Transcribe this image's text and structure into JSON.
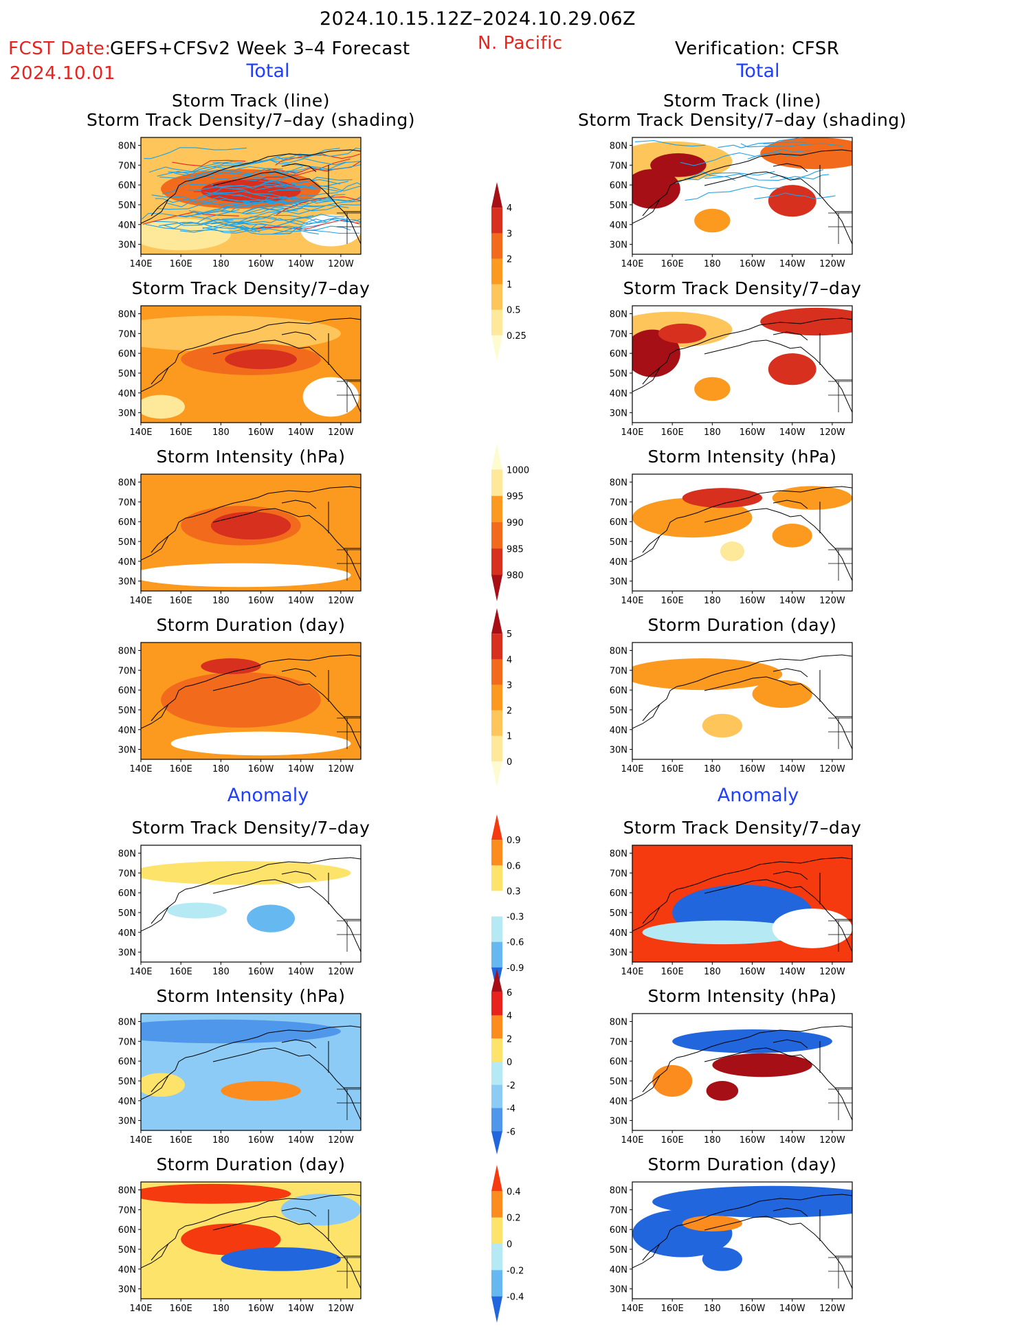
{
  "header": {
    "period": "2024.10.15.12Z–2024.10.29.06Z",
    "region": "N. Pacific",
    "fcst_label": "FCST Date:",
    "model": "GEFS+CFSv2 Week 3–4 Forecast",
    "fcst_date": "2024.10.01",
    "verification": "Verification: CFSR",
    "left_section": "Total",
    "right_section": "Total",
    "left_anomaly": "Anomaly",
    "right_anomaly": "Anomaly"
  },
  "axes": {
    "x_ticks": [
      "140E",
      "160E",
      "180",
      "160W",
      "140W",
      "120W"
    ],
    "y_ticks": [
      "80N",
      "70N",
      "60N",
      "50N",
      "40N",
      "30N"
    ]
  },
  "colorbars": [
    {
      "name": "track-density-total",
      "labels": [
        "4",
        "3",
        "2",
        "1",
        "0.5",
        "0.25"
      ],
      "colors": [
        "#a50f15",
        "#d7301f",
        "#f26b1d",
        "#fc9a1f",
        "#fdc55a",
        "#fee89a",
        "#fffbd0"
      ]
    },
    {
      "name": "intensity-total",
      "labels": [
        "1000",
        "995",
        "990",
        "985",
        "980"
      ],
      "colors": [
        "#fffbd0",
        "#fee89a",
        "#fc9a1f",
        "#f26b1d",
        "#d7301f",
        "#a50f15"
      ]
    },
    {
      "name": "duration-total",
      "labels": [
        "5",
        "4",
        "3",
        "2",
        "1",
        "0"
      ],
      "colors": [
        "#a50f15",
        "#d7301f",
        "#f26b1d",
        "#fc9a1f",
        "#fdc55a",
        "#fee89a",
        "#fffbd0"
      ]
    },
    {
      "name": "track-density-anomaly",
      "labels": [
        "0.9",
        "0.6",
        "0.3",
        "-0.3",
        "-0.6",
        "-0.9"
      ],
      "colors": [
        "#f53a10",
        "#fc8c1e",
        "#fee36a",
        "#ffffff",
        "#b5eaf5",
        "#66b8f0",
        "#2266dd"
      ]
    },
    {
      "name": "intensity-anomaly",
      "labels": [
        "6",
        "4",
        "2",
        "0",
        "-2",
        "-4",
        "-6"
      ],
      "colors": [
        "#a50f15",
        "#e8231e",
        "#fc8c1e",
        "#fee36a",
        "#b5eaf5",
        "#8ccbf5",
        "#4f97ea",
        "#2266dd"
      ]
    },
    {
      "name": "duration-anomaly",
      "labels": [
        "0.4",
        "0.2",
        "0",
        "-0.2",
        "-0.4"
      ],
      "colors": [
        "#f53a10",
        "#fc8c1e",
        "#fee36a",
        "#b5eaf5",
        "#66b8f0",
        "#2266dd"
      ]
    }
  ],
  "panels": [
    {
      "title1": "Storm Track (line)",
      "title2": "Storm Track Density/7–day (shading)",
      "base": "#fdc55a",
      "tracks": true,
      "blobs": [
        {
          "lon": 190,
          "lat": 58,
          "rx": 40,
          "ry": 10,
          "color": "#f26b1d"
        },
        {
          "lon": 195,
          "lat": 57,
          "rx": 25,
          "ry": 6,
          "color": "#d7301f"
        },
        {
          "lon": 160,
          "lat": 35,
          "rx": 25,
          "ry": 8,
          "color": "#fee89a"
        },
        {
          "lon": 235,
          "lat": 37,
          "rx": 15,
          "ry": 8,
          "color": "#ffffff"
        }
      ]
    },
    {
      "title1": "Storm Track (line)",
      "title2": "Storm Track Density/7–day (shading)",
      "base": "#ffffff",
      "tracks": true,
      "blobs": [
        {
          "lon": 160,
          "lat": 72,
          "rx": 30,
          "ry": 10,
          "color": "#fdc55a"
        },
        {
          "lon": 232,
          "lat": 76,
          "rx": 28,
          "ry": 8,
          "color": "#f26b1d"
        },
        {
          "lon": 150,
          "lat": 58,
          "rx": 14,
          "ry": 10,
          "color": "#a50f15"
        },
        {
          "lon": 163,
          "lat": 70,
          "rx": 14,
          "ry": 6,
          "color": "#a50f15"
        },
        {
          "lon": 220,
          "lat": 52,
          "rx": 12,
          "ry": 8,
          "color": "#d7301f"
        },
        {
          "lon": 180,
          "lat": 42,
          "rx": 9,
          "ry": 6,
          "color": "#fc9a1f"
        }
      ]
    },
    {
      "title1": "",
      "title2": "Storm Track Density/7–day",
      "base": "#fc9a1f",
      "tracks": false,
      "blobs": [
        {
          "lon": 180,
          "lat": 70,
          "rx": 60,
          "ry": 9,
          "color": "#fdc55a"
        },
        {
          "lon": 195,
          "lat": 57,
          "rx": 35,
          "ry": 8,
          "color": "#f26b1d"
        },
        {
          "lon": 200,
          "lat": 57,
          "rx": 18,
          "ry": 5,
          "color": "#d7301f"
        },
        {
          "lon": 150,
          "lat": 33,
          "rx": 12,
          "ry": 6,
          "color": "#fee89a"
        },
        {
          "lon": 235,
          "lat": 38,
          "rx": 14,
          "ry": 10,
          "color": "#ffffff"
        }
      ]
    },
    {
      "title1": "",
      "title2": "Storm Track Density/7–day",
      "base": "#ffffff",
      "tracks": false,
      "blobs": [
        {
          "lon": 160,
          "lat": 72,
          "rx": 30,
          "ry": 9,
          "color": "#fdc55a"
        },
        {
          "lon": 232,
          "lat": 76,
          "rx": 28,
          "ry": 7,
          "color": "#d7301f"
        },
        {
          "lon": 150,
          "lat": 60,
          "rx": 14,
          "ry": 12,
          "color": "#a50f15"
        },
        {
          "lon": 165,
          "lat": 70,
          "rx": 12,
          "ry": 5,
          "color": "#d7301f"
        },
        {
          "lon": 220,
          "lat": 52,
          "rx": 12,
          "ry": 8,
          "color": "#d7301f"
        },
        {
          "lon": 180,
          "lat": 42,
          "rx": 9,
          "ry": 6,
          "color": "#fc9a1f"
        }
      ]
    },
    {
      "title1": "",
      "title2": "Storm Intensity (hPa)",
      "base": "#fc9a1f",
      "tracks": false,
      "blobs": [
        {
          "lon": 190,
          "lat": 58,
          "rx": 30,
          "ry": 10,
          "color": "#f26b1d"
        },
        {
          "lon": 195,
          "lat": 58,
          "rx": 20,
          "ry": 7,
          "color": "#d7301f"
        },
        {
          "lon": 190,
          "lat": 33,
          "rx": 55,
          "ry": 6,
          "color": "#ffffff"
        }
      ]
    },
    {
      "title1": "",
      "title2": "Storm Intensity (hPa)",
      "base": "#ffffff",
      "tracks": false,
      "blobs": [
        {
          "lon": 170,
          "lat": 62,
          "rx": 30,
          "ry": 10,
          "color": "#fc9a1f"
        },
        {
          "lon": 185,
          "lat": 72,
          "rx": 20,
          "ry": 5,
          "color": "#d7301f"
        },
        {
          "lon": 230,
          "lat": 72,
          "rx": 20,
          "ry": 6,
          "color": "#fc9a1f"
        },
        {
          "lon": 220,
          "lat": 53,
          "rx": 10,
          "ry": 6,
          "color": "#fc9a1f"
        },
        {
          "lon": 190,
          "lat": 45,
          "rx": 6,
          "ry": 5,
          "color": "#fee89a"
        }
      ]
    },
    {
      "title1": "",
      "title2": "Storm Duration (day)",
      "base": "#fc9a1f",
      "tracks": false,
      "blobs": [
        {
          "lon": 190,
          "lat": 55,
          "rx": 40,
          "ry": 14,
          "color": "#f26b1d"
        },
        {
          "lon": 185,
          "lat": 72,
          "rx": 15,
          "ry": 4,
          "color": "#d7301f"
        },
        {
          "lon": 200,
          "lat": 33,
          "rx": 45,
          "ry": 6,
          "color": "#ffffff"
        }
      ]
    },
    {
      "title1": "",
      "title2": "Storm Duration (day)",
      "base": "#ffffff",
      "tracks": false,
      "blobs": [
        {
          "lon": 175,
          "lat": 68,
          "rx": 40,
          "ry": 8,
          "color": "#fc9a1f"
        },
        {
          "lon": 215,
          "lat": 58,
          "rx": 15,
          "ry": 7,
          "color": "#fc9a1f"
        },
        {
          "lon": 185,
          "lat": 42,
          "rx": 10,
          "ry": 6,
          "color": "#fdc55a"
        }
      ]
    },
    {
      "title1": "",
      "title2": "Storm Track Density/7–day",
      "base": "#ffffff",
      "tracks": false,
      "blobs": [
        {
          "lon": 190,
          "lat": 70,
          "rx": 55,
          "ry": 6,
          "color": "#fee36a"
        },
        {
          "lon": 205,
          "lat": 47,
          "rx": 12,
          "ry": 7,
          "color": "#66b8f0"
        },
        {
          "lon": 168,
          "lat": 51,
          "rx": 15,
          "ry": 4,
          "color": "#b5eaf5"
        }
      ]
    },
    {
      "title1": "",
      "title2": "Storm Track Density/7–day",
      "base": "#f53a10",
      "tracks": false,
      "blobs": [
        {
          "lon": 195,
          "lat": 50,
          "rx": 35,
          "ry": 14,
          "color": "#2266dd"
        },
        {
          "lon": 185,
          "lat": 40,
          "rx": 40,
          "ry": 6,
          "color": "#b5eaf5"
        },
        {
          "lon": 230,
          "lat": 42,
          "rx": 20,
          "ry": 10,
          "color": "#ffffff"
        }
      ]
    },
    {
      "title1": "",
      "title2": "Storm Intensity (hPa)",
      "base": "#8ccbf5",
      "tracks": false,
      "blobs": [
        {
          "lon": 180,
          "lat": 75,
          "rx": 60,
          "ry": 6,
          "color": "#4f97ea"
        },
        {
          "lon": 200,
          "lat": 45,
          "rx": 20,
          "ry": 5,
          "color": "#fc8c1e"
        },
        {
          "lon": 150,
          "lat": 48,
          "rx": 12,
          "ry": 6,
          "color": "#fee36a"
        }
      ]
    },
    {
      "title1": "",
      "title2": "Storm Intensity (hPa)",
      "base": "#ffffff",
      "tracks": false,
      "blobs": [
        {
          "lon": 200,
          "lat": 70,
          "rx": 40,
          "ry": 6,
          "color": "#2266dd"
        },
        {
          "lon": 205,
          "lat": 58,
          "rx": 25,
          "ry": 6,
          "color": "#a50f15"
        },
        {
          "lon": 160,
          "lat": 50,
          "rx": 10,
          "ry": 8,
          "color": "#fc8c1e"
        },
        {
          "lon": 185,
          "lat": 45,
          "rx": 8,
          "ry": 5,
          "color": "#a50f15"
        }
      ]
    },
    {
      "title1": "",
      "title2": "Storm Duration (day)",
      "base": "#fee36a",
      "tracks": false,
      "blobs": [
        {
          "lon": 175,
          "lat": 78,
          "rx": 40,
          "ry": 5,
          "color": "#f53a10"
        },
        {
          "lon": 185,
          "lat": 55,
          "rx": 25,
          "ry": 8,
          "color": "#f53a10"
        },
        {
          "lon": 210,
          "lat": 45,
          "rx": 30,
          "ry": 6,
          "color": "#2266dd"
        },
        {
          "lon": 230,
          "lat": 70,
          "rx": 20,
          "ry": 8,
          "color": "#8ccbf5"
        }
      ]
    },
    {
      "title1": "",
      "title2": "Storm Duration (day)",
      "base": "#ffffff",
      "tracks": false,
      "blobs": [
        {
          "lon": 210,
          "lat": 74,
          "rx": 60,
          "ry": 8,
          "color": "#2266dd"
        },
        {
          "lon": 165,
          "lat": 58,
          "rx": 25,
          "ry": 12,
          "color": "#2266dd"
        },
        {
          "lon": 185,
          "lat": 45,
          "rx": 10,
          "ry": 6,
          "color": "#2266dd"
        },
        {
          "lon": 180,
          "lat": 63,
          "rx": 15,
          "ry": 4,
          "color": "#fc8c1e"
        }
      ]
    }
  ]
}
